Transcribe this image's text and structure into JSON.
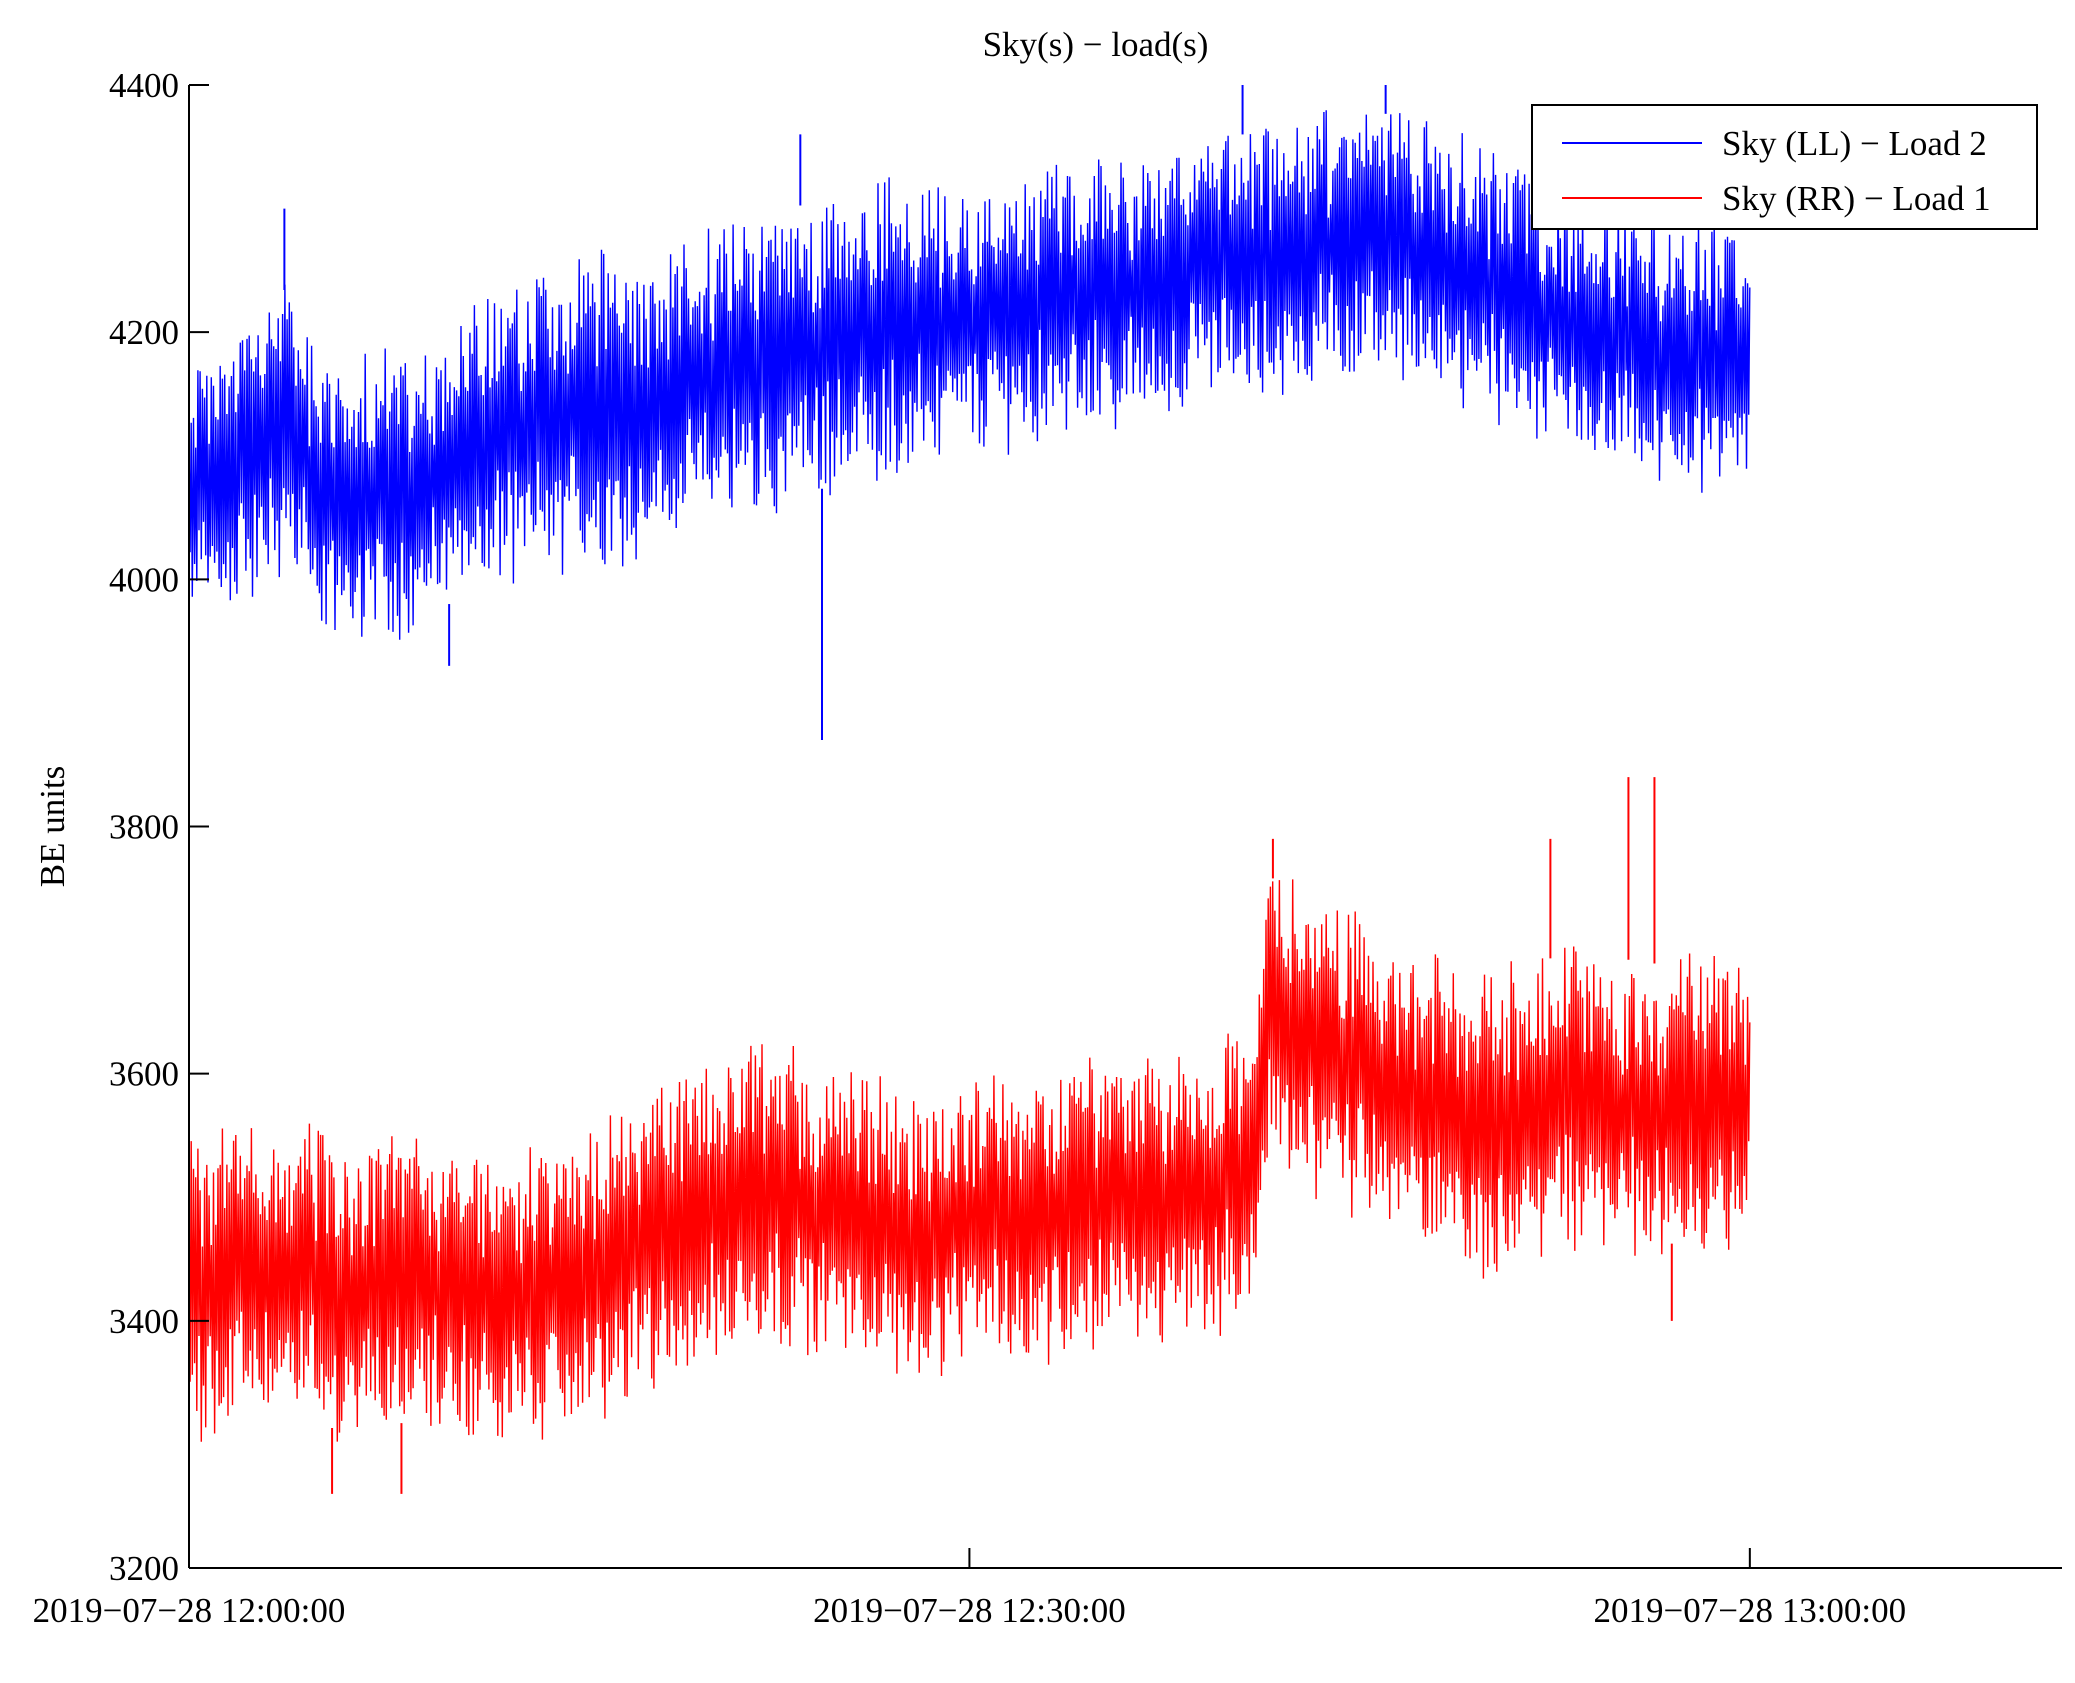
{
  "chart_data": {
    "type": "line",
    "title": "Sky(s) − load(s)",
    "xlabel": "",
    "ylabel": "BE units",
    "ylim": [
      3200,
      4400
    ],
    "yticks": [
      3200,
      3400,
      3600,
      3800,
      4000,
      4200,
      4400
    ],
    "xlim": [
      "2019-07-28 12:00:00",
      "2019-07-28 13:12:00"
    ],
    "xticks": [
      "2019-07-28 12:00:00",
      "2019-07-28 12:30:00",
      "2019-07-28 13:00:00"
    ],
    "xtick_labels": [
      "2019−07−28 12:00:00",
      "2019−07−28 12:30:00",
      "2019−07−28 13:00:00"
    ],
    "grid": false,
    "legend": {
      "placement": "top-right"
    },
    "x_end": "2019-07-28 13:00:00",
    "series": [
      {
        "name": "Sky (LL) − Load 2",
        "color": "#0000ff",
        "envelope": [
          {
            "t": "2019-07-28 12:00:00",
            "high": 4170,
            "low": 3960
          },
          {
            "t": "2019-07-28 12:04:00",
            "high": 4240,
            "low": 4010
          },
          {
            "t": "2019-07-28 12:05:00",
            "high": 4170,
            "low": 3960
          },
          {
            "t": "2019-07-28 12:08:00",
            "high": 4180,
            "low": 3960
          },
          {
            "t": "2019-07-28 12:10:00",
            "high": 4200,
            "low": 3980
          },
          {
            "t": "2019-07-28 12:12:00",
            "high": 4240,
            "low": 4000
          },
          {
            "t": "2019-07-28 12:15:00",
            "high": 4260,
            "low": 4010
          },
          {
            "t": "2019-07-28 12:18:00",
            "high": 4250,
            "low": 4030
          },
          {
            "t": "2019-07-28 12:20:00",
            "high": 4280,
            "low": 4050
          },
          {
            "t": "2019-07-28 12:23:00",
            "high": 4300,
            "low": 4060
          },
          {
            "t": "2019-07-28 12:25:00",
            "high": 4310,
            "low": 4080
          },
          {
            "t": "2019-07-28 12:28:00",
            "high": 4320,
            "low": 4100
          },
          {
            "t": "2019-07-28 12:30:00",
            "high": 4310,
            "low": 4110
          },
          {
            "t": "2019-07-28 12:33:00",
            "high": 4330,
            "low": 4120
          },
          {
            "t": "2019-07-28 12:36:00",
            "high": 4340,
            "low": 4130
          },
          {
            "t": "2019-07-28 12:39:00",
            "high": 4350,
            "low": 4150
          },
          {
            "t": "2019-07-28 12:42:00",
            "high": 4370,
            "low": 4160
          },
          {
            "t": "2019-07-28 12:45:00",
            "high": 4380,
            "low": 4170
          },
          {
            "t": "2019-07-28 12:48:00",
            "high": 4370,
            "low": 4160
          },
          {
            "t": "2019-07-28 12:50:00",
            "high": 4340,
            "low": 4130
          },
          {
            "t": "2019-07-28 12:53:00",
            "high": 4310,
            "low": 4100
          },
          {
            "t": "2019-07-28 12:56:00",
            "high": 4290,
            "low": 4080
          },
          {
            "t": "2019-07-28 13:00:00",
            "high": 4280,
            "low": 4070
          }
        ],
        "spikes": [
          {
            "t": "2019-07-28 12:24:20",
            "value": 3870
          },
          {
            "t": "2019-07-28 12:03:40",
            "value": 4300
          },
          {
            "t": "2019-07-28 12:23:30",
            "value": 4360
          },
          {
            "t": "2019-07-28 12:40:30",
            "value": 4400
          },
          {
            "t": "2019-07-28 12:46:00",
            "value": 4400
          },
          {
            "t": "2019-07-28 12:10:00",
            "value": 3930
          }
        ]
      },
      {
        "name": "Sky (RR) − Load 1",
        "color": "#ff0000",
        "envelope": [
          {
            "t": "2019-07-28 12:00:00",
            "high": 3550,
            "low": 3310
          },
          {
            "t": "2019-07-28 12:03:00",
            "high": 3560,
            "low": 3330
          },
          {
            "t": "2019-07-28 12:06:00",
            "high": 3540,
            "low": 3310
          },
          {
            "t": "2019-07-28 12:09:00",
            "high": 3550,
            "low": 3320
          },
          {
            "t": "2019-07-28 12:12:00",
            "high": 3530,
            "low": 3300
          },
          {
            "t": "2019-07-28 12:15:00",
            "high": 3540,
            "low": 3320
          },
          {
            "t": "2019-07-28 12:17:00",
            "high": 3580,
            "low": 3340
          },
          {
            "t": "2019-07-28 12:20:00",
            "high": 3600,
            "low": 3370
          },
          {
            "t": "2019-07-28 12:22:00",
            "high": 3620,
            "low": 3390
          },
          {
            "t": "2019-07-28 12:25:00",
            "high": 3600,
            "low": 3380
          },
          {
            "t": "2019-07-28 12:28:00",
            "high": 3580,
            "low": 3360
          },
          {
            "t": "2019-07-28 12:31:00",
            "high": 3590,
            "low": 3370
          },
          {
            "t": "2019-07-28 12:34:00",
            "high": 3600,
            "low": 3380
          },
          {
            "t": "2019-07-28 12:38:00",
            "high": 3620,
            "low": 3390
          },
          {
            "t": "2019-07-28 12:41:00",
            "high": 3630,
            "low": 3410
          },
          {
            "t": "2019-07-28 12:41:30",
            "high": 3760,
            "low": 3540
          },
          {
            "t": "2019-07-28 12:44:00",
            "high": 3730,
            "low": 3500
          },
          {
            "t": "2019-07-28 12:47:00",
            "high": 3690,
            "low": 3470
          },
          {
            "t": "2019-07-28 12:50:00",
            "high": 3670,
            "low": 3440
          },
          {
            "t": "2019-07-28 12:53:00",
            "high": 3700,
            "low": 3470
          },
          {
            "t": "2019-07-28 12:56:00",
            "high": 3690,
            "low": 3460
          },
          {
            "t": "2019-07-28 13:00:00",
            "high": 3680,
            "low": 3470
          }
        ],
        "spikes": [
          {
            "t": "2019-07-28 12:55:20",
            "value": 3840
          },
          {
            "t": "2019-07-28 12:56:20",
            "value": 3840
          },
          {
            "t": "2019-07-28 12:41:40",
            "value": 3790
          },
          {
            "t": "2019-07-28 12:52:20",
            "value": 3790
          },
          {
            "t": "2019-07-28 12:05:30",
            "value": 3260
          },
          {
            "t": "2019-07-28 12:08:10",
            "value": 3260
          },
          {
            "t": "2019-07-28 12:57:00",
            "value": 3400
          }
        ]
      }
    ]
  }
}
